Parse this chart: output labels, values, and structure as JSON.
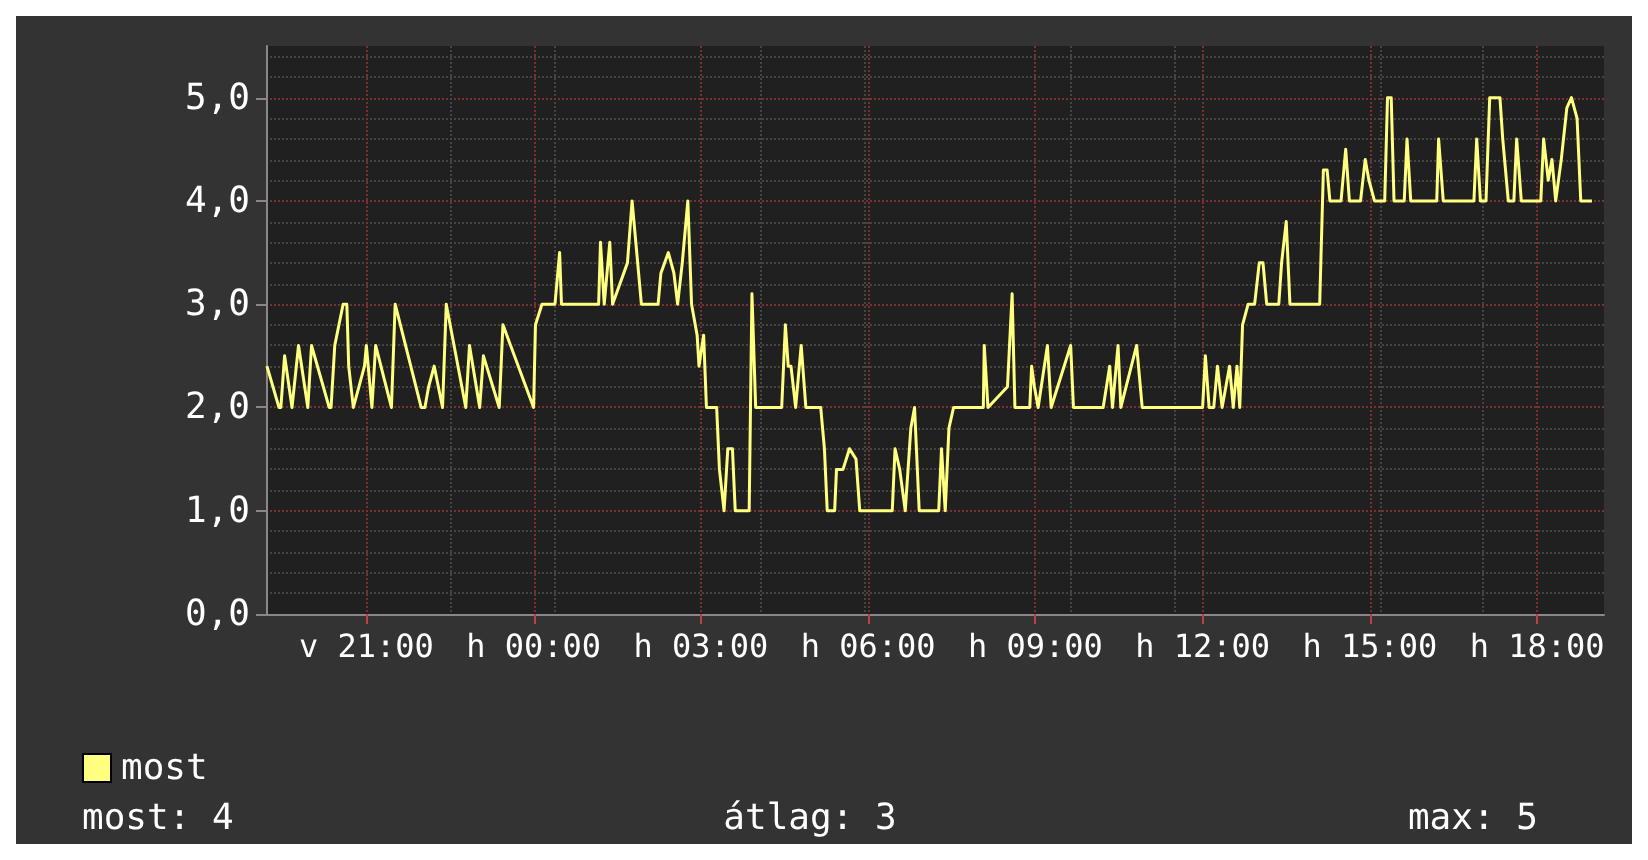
{
  "chart_data": {
    "type": "line",
    "x": [
      "--01-07T19:13",
      "--01-07T19:26",
      "--01-07T19:28",
      "--01-07T19:32",
      "--01-07T19:40",
      "--01-07T19:47",
      "--01-07T19:57",
      "--01-07T20:01",
      "--01-07T20:20",
      "--01-07T20:22",
      "--01-07T20:26",
      "--01-07T20:35",
      "--01-07T20:39",
      "--01-07T20:41",
      "--01-07T20:46",
      "--01-07T20:52",
      "--01-07T20:58",
      "--01-07T21:00",
      "--01-07T21:06",
      "--01-07T21:10",
      "--01-07T21:27",
      "--01-07T21:31",
      "--01-07T21:59",
      "--01-07T22:03",
      "--01-07T22:07",
      "--01-07T22:13",
      "--01-07T22:22",
      "--01-07T22:26",
      "--01-07T22:47",
      "--01-07T22:51",
      "--01-07T23:02",
      "--01-07T23:06",
      "--01-07T23:23",
      "--01-07T23:27",
      "--01-08T00:00",
      "--01-08T00:02",
      "--01-08T00:09",
      "--01-08T00:23",
      "--01-08T00:28",
      "--01-08T00:30",
      "--01-08T01:10",
      "--01-08T01:12",
      "--01-08T01:16",
      "--01-08T01:22",
      "--01-08T01:25",
      "--01-08T01:41",
      "--01-08T01:46",
      "--01-08T01:52",
      "--01-08T01:56",
      "--01-08T02:14",
      "--01-08T02:17",
      "--01-08T02:25",
      "--01-08T02:31",
      "--01-08T02:35",
      "--01-08T02:40",
      "--01-08T02:46",
      "--01-08T02:50",
      "--01-08T02:56",
      "--01-08T02:58",
      "--01-08T03:03",
      "--01-08T03:06",
      "--01-08T03:17",
      "--01-08T03:20",
      "--01-08T03:25",
      "--01-08T03:29",
      "--01-08T03:34",
      "--01-08T03:37",
      "--01-08T03:52",
      "--01-08T03:55",
      "--01-08T03:59",
      "--01-08T04:27",
      "--01-08T04:31",
      "--01-08T04:34",
      "--01-08T04:37",
      "--01-08T04:42",
      "--01-08T04:48",
      "--01-08T04:53",
      "--01-08T05:09",
      "--01-08T05:13",
      "--01-08T05:16",
      "--01-08T05:24",
      "--01-08T05:26",
      "--01-08T05:33",
      "--01-08T05:40",
      "--01-08T05:47",
      "--01-08T05:51",
      "--01-08T06:26",
      "--01-08T06:29",
      "--01-08T06:34",
      "--01-08T06:40",
      "--01-08T06:46",
      "--01-08T06:50",
      "--01-08T06:55",
      "--01-08T07:16",
      "--01-08T07:19",
      "--01-08T07:23",
      "--01-08T07:27",
      "--01-08T07:32",
      "--01-08T08:04",
      "--01-08T08:05",
      "--01-08T08:09",
      "--01-08T08:30",
      "--01-08T08:35",
      "--01-08T08:38",
      "--01-08T08:54",
      "--01-08T08:56",
      "--01-08T08:59",
      "--01-08T09:03",
      "--01-08T09:13",
      "--01-08T09:17",
      "--01-08T09:38",
      "--01-08T09:41",
      "--01-08T10:13",
      "--01-08T10:20",
      "--01-08T10:23",
      "--01-08T10:29",
      "--01-08T10:32",
      "--01-08T10:49",
      "--01-08T10:55",
      "--01-08T12:00",
      "--01-08T12:03",
      "--01-08T12:07",
      "--01-08T12:12",
      "--01-08T12:16",
      "--01-08T12:21",
      "--01-08T12:29",
      "--01-08T12:33",
      "--01-08T12:37",
      "--01-08T12:40",
      "--01-08T12:43",
      "--01-08T12:49",
      "--01-08T12:56",
      "--01-08T13:01",
      "--01-08T13:05",
      "--01-08T13:09",
      "--01-08T13:22",
      "--01-08T13:25",
      "--01-08T13:30",
      "--01-08T13:34",
      "--01-08T14:06",
      "--01-08T14:10",
      "--01-08T14:14",
      "--01-08T14:17",
      "--01-08T14:29",
      "--01-08T14:34",
      "--01-08T14:38",
      "--01-08T14:50",
      "--01-08T14:55",
      "--01-08T14:59",
      "--01-08T15:05",
      "--01-08T15:16",
      "--01-08T15:19",
      "--01-08T15:23",
      "--01-08T15:26",
      "--01-08T15:37",
      "--01-08T15:40",
      "--01-08T15:44",
      "--01-08T16:12",
      "--01-08T16:14",
      "--01-08T16:19",
      "--01-08T16:52",
      "--01-08T16:55",
      "--01-08T16:59",
      "--01-08T17:05",
      "--01-08T17:09",
      "--01-08T17:20",
      "--01-08T17:23",
      "--01-08T17:29",
      "--01-08T17:35",
      "--01-08T17:38",
      "--01-08T17:43",
      "--01-08T18:04",
      "--01-08T18:07",
      "--01-08T18:12",
      "--01-08T18:16",
      "--01-08T18:20",
      "--01-08T18:26",
      "--01-08T18:32",
      "--01-08T18:37",
      "--01-08T18:43",
      "--01-08T18:47",
      "--01-08T18:59"
    ],
    "series": [
      {
        "name": "most",
        "color": "#ffff80",
        "values": [
          2.4,
          2,
          2,
          2.5,
          2,
          2.6,
          2,
          2.6,
          2,
          2,
          2.6,
          3,
          3,
          2.4,
          2,
          2.2,
          2.4,
          2.6,
          2,
          2.6,
          2,
          3,
          2,
          2,
          2.2,
          2.4,
          2,
          3,
          2,
          2.6,
          2,
          2.5,
          2,
          2.8,
          2,
          2.8,
          3,
          3,
          3.5,
          3,
          3,
          3.6,
          3,
          3.6,
          3,
          3.4,
          4,
          3.4,
          3,
          3,
          3.3,
          3.5,
          3.3,
          3,
          3.4,
          4,
          3,
          2.7,
          2.4,
          2.7,
          2,
          2,
          1.4,
          1,
          1.6,
          1.6,
          1,
          1,
          3.1,
          2,
          2,
          2.8,
          2.4,
          2.4,
          2,
          2.6,
          2,
          2,
          1.6,
          1,
          1,
          1.4,
          1.4,
          1.6,
          1.5,
          1,
          1,
          1.6,
          1.4,
          1,
          1.8,
          2,
          1,
          1,
          1.6,
          1,
          1.8,
          2,
          2,
          2.6,
          2,
          2.2,
          3.1,
          2,
          2,
          2.4,
          2.2,
          2,
          2.6,
          2,
          2.6,
          2,
          2,
          2.4,
          2,
          2.6,
          2,
          2.6,
          2,
          2,
          2.5,
          2,
          2,
          2.4,
          2,
          2.4,
          2,
          2.4,
          2,
          2.8,
          3,
          3,
          3.4,
          3.4,
          3,
          3,
          3.4,
          3.8,
          3,
          3,
          4.3,
          4.3,
          4,
          4,
          4.5,
          4,
          4,
          4.4,
          4.2,
          4,
          4,
          5,
          5,
          4,
          4,
          4.6,
          4,
          4,
          4.6,
          4,
          4,
          4.6,
          4,
          4,
          5,
          5,
          4.6,
          4,
          4,
          4.6,
          4,
          4,
          4.6,
          4.2,
          4.4,
          4,
          4.4,
          4.9,
          5,
          4.8,
          4,
          4
        ]
      }
    ],
    "xlim": [
      "--01-07T19:12",
      "--01-08T19:12"
    ],
    "xticks": [
      {
        "value": "--01-07T21:00",
        "label": "v 21:00"
      },
      {
        "value": "--01-08T00:00",
        "label": "h 00:00"
      },
      {
        "value": "--01-08T03:00",
        "label": "h 03:00"
      },
      {
        "value": "--01-08T06:00",
        "label": "h 06:00"
      },
      {
        "value": "--01-08T09:00",
        "label": "h 09:00"
      },
      {
        "value": "--01-08T12:00",
        "label": "h 12:00"
      },
      {
        "value": "--01-08T15:00",
        "label": "h 15:00"
      },
      {
        "value": "--01-08T18:00",
        "label": "h 18:00"
      }
    ],
    "ylim": [
      0,
      5.5
    ],
    "yticks": [
      {
        "value": 0,
        "label": "0,0"
      },
      {
        "value": 1,
        "label": "1,0"
      },
      {
        "value": 2,
        "label": "2,0"
      },
      {
        "value": 3,
        "label": "3,0"
      },
      {
        "value": 4,
        "label": "4,0"
      },
      {
        "value": 5,
        "label": "5,0"
      }
    ],
    "grid": true,
    "legend": "bottom left",
    "marker": "none",
    "line_style": "solid",
    "annotations": [
      "most: 4",
      "átlag: 3",
      "max: 5"
    ]
  }
}
